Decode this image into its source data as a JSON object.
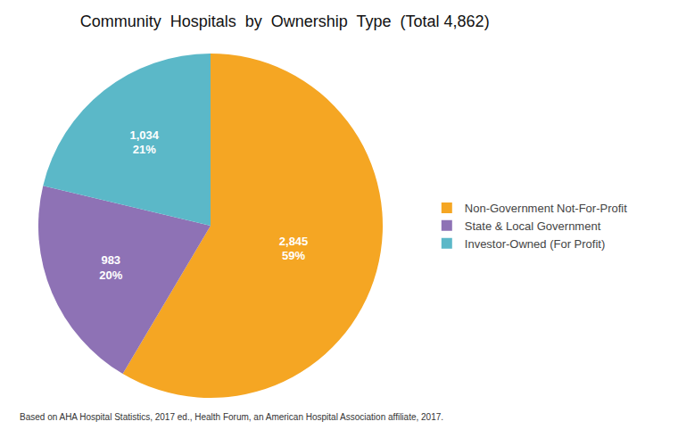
{
  "chart_data": {
    "type": "pie",
    "title": "Community  Hospitals  by  Ownership  Type  (Total 4,862)",
    "categories": [
      "Non-Government Not-For-Profit",
      "State & Local Government",
      "Investor-Owned (For Profit)"
    ],
    "values": [
      2845,
      983,
      1034
    ],
    "value_labels": [
      "2,845\n59%",
      "983\n20%",
      "1,034\n21%"
    ],
    "colors": [
      "#F5A623",
      "#8E72B5",
      "#5BB8C8"
    ],
    "data_labels": true,
    "legend": "right",
    "annotations": [
      "Based on AHA Hospital Statistics, 2017 ed., Health Forum, an American Hospital Association affiliate, 2017."
    ]
  }
}
